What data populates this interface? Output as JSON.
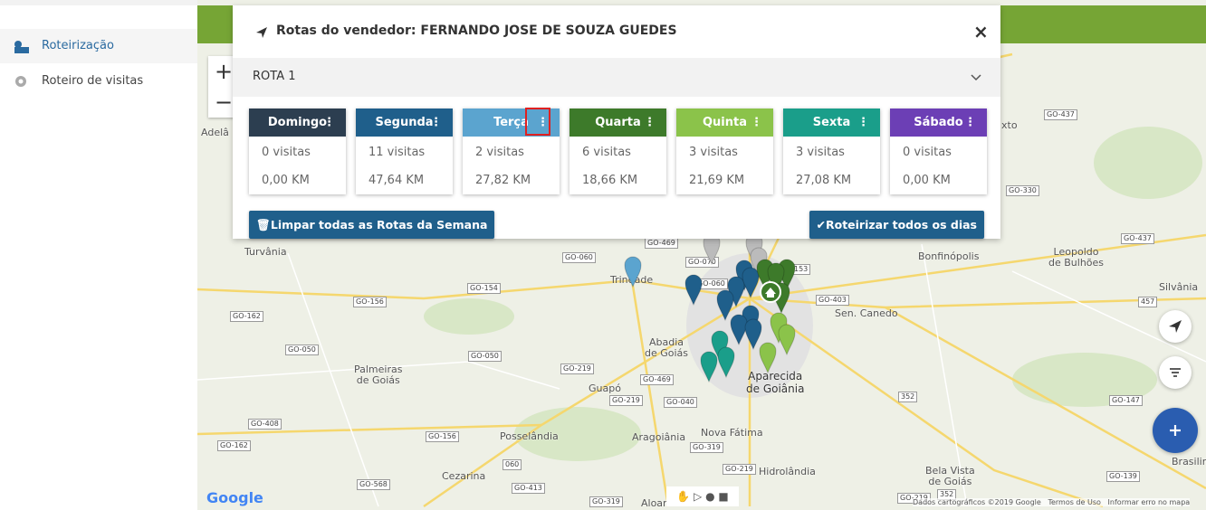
{
  "sidebar": {
    "items": [
      {
        "label": "Roteirização"
      },
      {
        "label": "Roteiro de visitas"
      }
    ]
  },
  "modal": {
    "title": "Rotas do vendedor: FERNANDO JOSE DE SOUZA GUEDES",
    "close": "×",
    "route": "ROTA 1",
    "days": [
      {
        "name": "Domingo",
        "visits": "0 visitas",
        "distance": "0,00 KM"
      },
      {
        "name": "Segunda",
        "visits": "11 visitas",
        "distance": "47,64 KM"
      },
      {
        "name": "Terça",
        "visits": "2 visitas",
        "distance": "27,82 KM"
      },
      {
        "name": "Quarta",
        "visits": "6 visitas",
        "distance": "18,66 KM"
      },
      {
        "name": "Quinta",
        "visits": "3 visitas",
        "distance": "21,69 KM"
      },
      {
        "name": "Sexta",
        "visits": "3 visitas",
        "distance": "27,08 KM"
      },
      {
        "name": "Sábado",
        "visits": "0 visitas",
        "distance": "0,00 KM"
      }
    ],
    "clear_button": "Limpar todas as Rotas da Semana",
    "route_all_button": "Roteirizar todos os dias"
  },
  "map": {
    "zoom_in": "+",
    "zoom_out": "−",
    "logo": "Google",
    "places": [
      "Adelâ",
      "Turvânia",
      "Trindade",
      "Bonfinópolis",
      "Leopoldo\nde Bulhões",
      "Silvânia",
      "Sen. Canedo",
      "Abadia\nde Goiás",
      "Palmeiras\nde Goiás",
      "Guapó",
      "Aparecida\nde Goiânia",
      "Nova Fátima",
      "Aragoiânia",
      "Posselândia",
      "Cezarina",
      "Hidrolândia",
      "Bela Vista\nde Goiás",
      "Brasilinha",
      "Aloan",
      "xto"
    ],
    "roads": [
      "GO-437",
      "GO-330",
      "GO-437",
      "GO-469",
      "GO-060",
      "GO-070",
      "GO-060",
      "GO-154",
      "GO-156",
      "GO-162",
      "GO-403",
      "GO-050",
      "GO-050",
      "GO-219",
      "GO-469",
      "GO-219",
      "GO-040",
      "GO-408",
      "GO-162",
      "GO-156",
      "GO-319",
      "GO-219",
      "GO-568",
      "GO-413",
      "GO-319",
      "GO-139",
      "GO-147",
      "352",
      "457",
      "060",
      "153",
      "352",
      "GO-219"
    ],
    "footer": [
      "Dados cartográficos ©2019 Google",
      "Termos de Uso",
      "Informar erro no mapa"
    ]
  }
}
